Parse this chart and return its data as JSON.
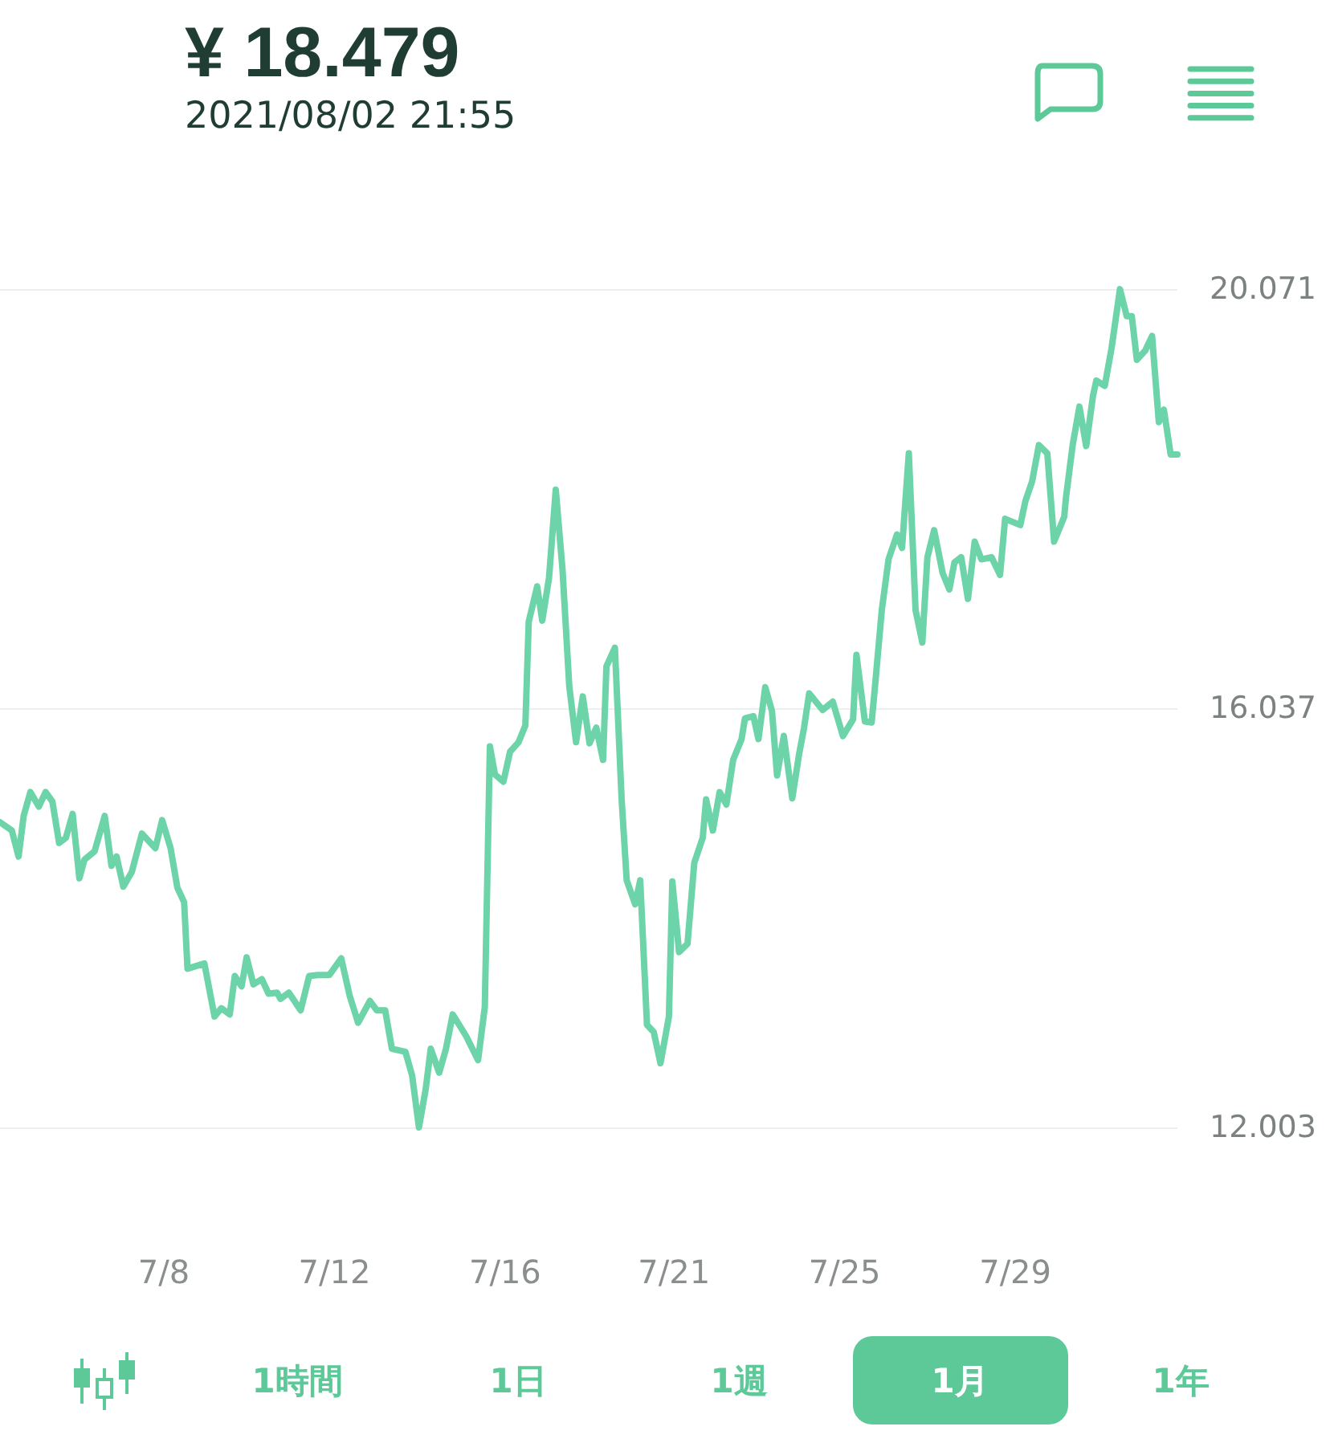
{
  "chart_data": {
    "type": "line",
    "title": "¥ 18.479",
    "subtitle": "2021/08/02 21:55",
    "x": [
      "2021-07-04T11:00",
      "2021-07-04T18:00",
      "2021-07-04T22:00",
      "2021-07-05T01:00",
      "2021-07-05T05:00",
      "2021-07-05T10:00",
      "2021-07-05T14:00",
      "2021-07-05T18:00",
      "2021-07-05T22:00",
      "2021-07-06T02:00",
      "2021-07-06T06:00",
      "2021-07-06T10:00",
      "2021-07-06T13:00",
      "2021-07-06T19:00",
      "2021-07-07T01:00",
      "2021-07-07T05:00",
      "2021-07-07T08:00",
      "2021-07-07T12:00",
      "2021-07-07T17:00",
      "2021-07-07T23:00",
      "2021-07-08T07:00",
      "2021-07-08T11:00",
      "2021-07-08T16:00",
      "2021-07-08T20:00",
      "2021-07-09T00:00",
      "2021-07-09T02:00",
      "2021-07-09T12:00",
      "2021-07-09T16:00",
      "2021-07-09T18:00",
      "2021-07-09T22:00",
      "2021-07-10T03:00",
      "2021-07-10T06:00",
      "2021-07-10T10:00",
      "2021-07-10T13:00",
      "2021-07-10T17:00",
      "2021-07-10T22:00",
      "2021-07-11T02:00",
      "2021-07-11T07:00",
      "2021-07-11T09:00",
      "2021-07-11T14:00",
      "2021-07-11T21:00",
      "2021-07-12T02:00",
      "2021-07-12T07:00",
      "2021-07-12T14:00",
      "2021-07-12T21:00",
      "2021-07-13T02:00",
      "2021-07-13T07:00",
      "2021-07-13T14:00",
      "2021-07-13T18:00",
      "2021-07-13T23:00",
      "2021-07-14T03:00",
      "2021-07-14T11:00",
      "2021-07-14T15:00",
      "2021-07-14T19:00",
      "2021-07-14T23:00",
      "2021-07-15T02:00",
      "2021-07-15T07:00",
      "2021-07-15T11:00",
      "2021-07-15T15:00",
      "2021-07-15T23:00",
      "2021-07-16T06:00",
      "2021-07-16T10:00",
      "2021-07-16T13:00",
      "2021-07-16T16:00",
      "2021-07-16T21:00",
      "2021-07-17T01:00",
      "2021-07-17T06:00",
      "2021-07-17T10:00",
      "2021-07-17T12:00",
      "2021-07-17T17:00",
      "2021-07-17T20:00",
      "2021-07-18T00:00",
      "2021-07-18T04:00",
      "2021-07-18T08:00",
      "2021-07-18T12:00",
      "2021-07-18T16:00",
      "2021-07-18T20:00",
      "2021-07-19T00:00",
      "2021-07-19T04:00",
      "2021-07-19T08:00",
      "2021-07-19T10:00",
      "2021-07-19T15:00",
      "2021-07-19T19:00",
      "2021-07-19T22:00",
      "2021-07-20T03:00",
      "2021-07-20T06:00",
      "2021-07-20T10:00",
      "2021-07-20T14:00",
      "2021-07-20T18:00",
      "2021-07-20T23:00",
      "2021-07-21T01:00",
      "2021-07-21T05:00",
      "2021-07-21T10:00",
      "2021-07-21T14:00",
      "2021-07-21T19:00",
      "2021-07-21T21:00",
      "2021-07-22T01:00",
      "2021-07-22T05:00",
      "2021-07-22T09:00",
      "2021-07-22T13:00",
      "2021-07-22T18:00",
      "2021-07-22T20:00",
      "2021-07-23T01:00",
      "2021-07-23T04:00",
      "2021-07-23T08:00",
      "2021-07-23T12:00",
      "2021-07-23T15:00",
      "2021-07-23T19:00",
      "2021-07-24T00:00",
      "2021-07-24T04:00",
      "2021-07-24T07:00",
      "2021-07-24T10:00",
      "2021-07-24T18:00",
      "2021-07-25T00:00",
      "2021-07-25T06:00",
      "2021-07-25T12:00",
      "2021-07-25T14:00",
      "2021-07-25T19:00",
      "2021-07-25T23:00",
      "2021-07-26T01:00",
      "2021-07-26T05:00",
      "2021-07-26T09:00",
      "2021-07-26T14:00",
      "2021-07-26T17:00",
      "2021-07-26T21:00",
      "2021-07-27T01:00",
      "2021-07-27T05:00",
      "2021-07-27T08:00",
      "2021-07-27T12:00",
      "2021-07-27T17:00",
      "2021-07-27T21:00",
      "2021-07-28T00:00",
      "2021-07-28T04:00",
      "2021-07-28T08:00",
      "2021-07-28T12:00",
      "2021-07-28T16:00",
      "2021-07-28T22:00",
      "2021-07-29T03:00",
      "2021-07-29T06:00",
      "2021-07-29T15:00",
      "2021-07-29T18:00",
      "2021-07-29T22:00",
      "2021-07-30T02:00",
      "2021-07-30T07:00",
      "2021-07-30T11:00",
      "2021-07-30T17:00",
      "2021-07-30T18:00",
      "2021-07-30T22:00",
      "2021-07-31T02:00",
      "2021-07-31T06:00",
      "2021-07-31T10:00",
      "2021-07-31T12:00",
      "2021-07-31T17:00",
      "2021-07-31T21:00",
      "2021-08-01T02:00",
      "2021-08-01T06:00",
      "2021-08-01T09:00",
      "2021-08-01T12:00",
      "2021-08-01T17:00",
      "2021-08-01T21:00",
      "2021-08-02T01:00",
      "2021-08-02T04:00",
      "2021-08-02T08:00",
      "2021-08-02T12:00"
    ],
    "series": [
      {
        "color": "#6dd3a8",
        "values": [
          14.94,
          14.86,
          14.61,
          15.0,
          15.23,
          15.09,
          15.23,
          15.14,
          14.74,
          14.79,
          15.02,
          14.4,
          14.58,
          14.66,
          15.0,
          14.52,
          14.61,
          14.32,
          14.46,
          14.83,
          14.69,
          14.96,
          14.69,
          14.31,
          14.17,
          13.53,
          13.58,
          13.24,
          13.07,
          13.15,
          13.09,
          13.46,
          13.36,
          13.64,
          13.38,
          13.43,
          13.29,
          13.3,
          13.24,
          13.3,
          13.13,
          13.46,
          13.47,
          13.47,
          13.63,
          13.27,
          13.01,
          13.22,
          13.13,
          13.13,
          12.76,
          12.73,
          12.5,
          12.003,
          12.37,
          12.76,
          12.53,
          12.76,
          13.09,
          12.88,
          12.65,
          13.16,
          15.67,
          15.4,
          15.33,
          15.62,
          15.71,
          15.87,
          16.87,
          17.21,
          16.88,
          17.29,
          18.14,
          17.37,
          16.25,
          15.71,
          16.15,
          15.7,
          15.85,
          15.54,
          16.44,
          16.62,
          15.16,
          14.38,
          14.15,
          14.38,
          12.99,
          12.92,
          12.62,
          13.07,
          14.37,
          13.69,
          13.77,
          14.55,
          14.79,
          15.16,
          14.86,
          15.23,
          15.11,
          15.54,
          15.74,
          15.94,
          15.96,
          15.74,
          16.24,
          16.01,
          15.39,
          15.77,
          15.17,
          15.59,
          15.85,
          16.18,
          16.02,
          16.1,
          15.77,
          15.93,
          16.55,
          15.91,
          15.9,
          16.25,
          16.98,
          17.47,
          17.71,
          17.58,
          18.49,
          16.98,
          16.67,
          17.49,
          17.75,
          17.34,
          17.18,
          17.44,
          17.49,
          17.09,
          17.64,
          17.47,
          17.49,
          17.32,
          17.86,
          17.8,
          18.03,
          18.22,
          18.57,
          18.49,
          17.64,
          17.88,
          18.06,
          18.57,
          18.94,
          18.56,
          19.04,
          19.19,
          19.14,
          19.5,
          20.07,
          19.81,
          19.81,
          19.39,
          19.48,
          19.62,
          18.79,
          18.91,
          18.48,
          18.48
        ]
      }
    ],
    "xlim": [
      "2021-07-04T11:00",
      "2021-08-02T12:00"
    ],
    "xticks": [
      {
        "value": "2021-07-08T12:00",
        "label": "7/8"
      },
      {
        "value": "2021-07-12T17:00",
        "label": "7/12"
      },
      {
        "value": "2021-07-16T22:00",
        "label": "7/16"
      },
      {
        "value": "2021-07-21T02:00",
        "label": "7/21"
      },
      {
        "value": "2021-07-25T07:00",
        "label": "7/25"
      },
      {
        "value": "2021-07-29T12:00",
        "label": "7/29"
      }
    ],
    "ylim": [
      12.003,
      20.071
    ],
    "yticks": [
      12.003,
      16.037,
      20.071
    ],
    "grid": "y",
    "marker": "none",
    "line_style": "solid",
    "annotations": [
      "1時間",
      "1日",
      "1週",
      "1月",
      "1年"
    ]
  }
}
